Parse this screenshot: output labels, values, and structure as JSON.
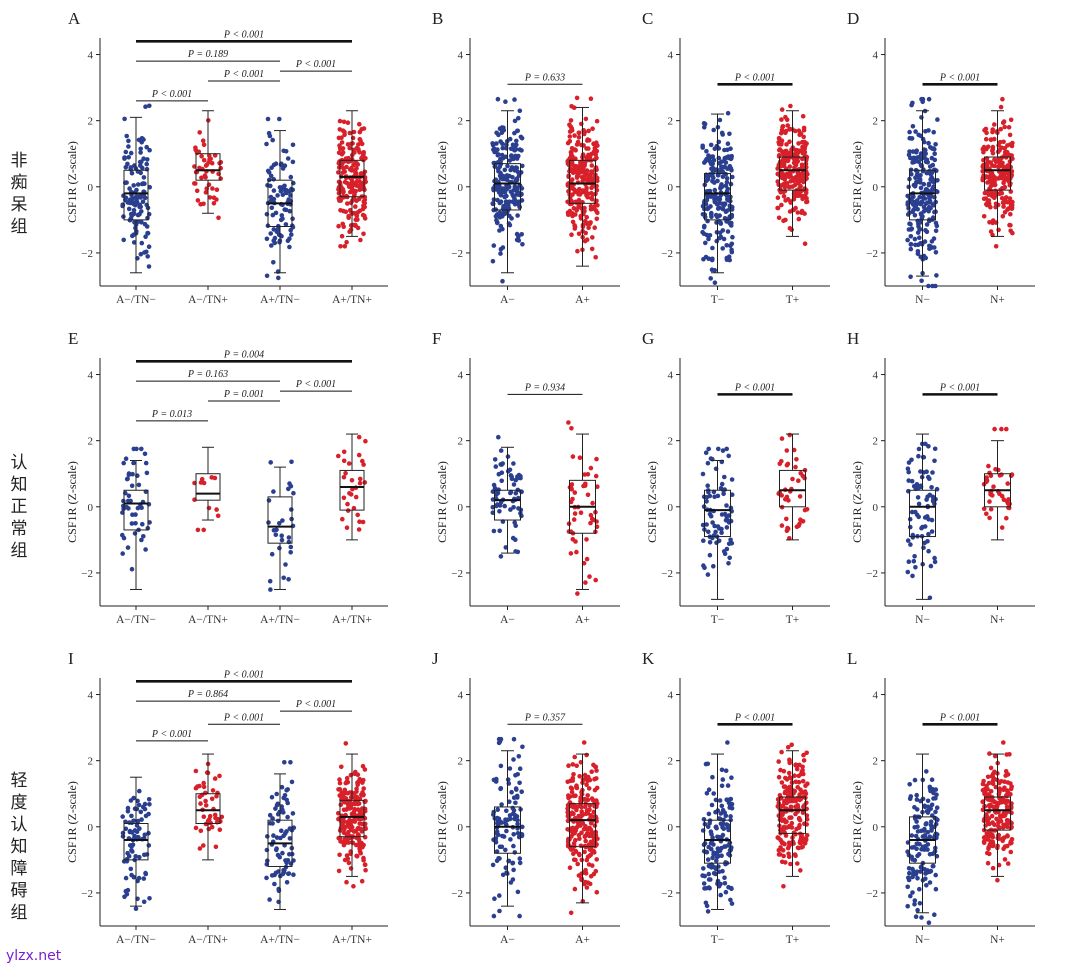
{
  "row_labels": [
    "非痴呆组",
    "认知正常组",
    "轻度认知障碍组"
  ],
  "watermark": "ylzx.net",
  "colors": {
    "negative": "#2a3f8f",
    "positive": "#d8202a"
  },
  "chart_data": [
    {
      "panel": "A",
      "type": "box",
      "ylabel": "CSF1R (Z-scale)",
      "ylim": [
        -3,
        4.5
      ],
      "yticks": [
        -2,
        0,
        2,
        4
      ],
      "ytick_labels": [
        "−2",
        "0",
        "2",
        "4"
      ],
      "categories": [
        "A−/TN−",
        "A−/TN+",
        "A+/TN−",
        "A+/TN+"
      ],
      "boxes": [
        {
          "min": -2.6,
          "q1": -1.0,
          "median": -0.2,
          "q3": 0.5,
          "max": 2.1,
          "n": 120,
          "color": "negative"
        },
        {
          "min": -0.8,
          "q1": 0.2,
          "median": 0.5,
          "q3": 1.0,
          "max": 2.3,
          "n": 50,
          "color": "positive"
        },
        {
          "min": -2.6,
          "q1": -1.2,
          "median": -0.5,
          "q3": 0.2,
          "max": 1.7,
          "n": 95,
          "color": "negative"
        },
        {
          "min": -1.5,
          "q1": -0.3,
          "median": 0.3,
          "q3": 0.8,
          "max": 2.3,
          "n": 200,
          "color": "positive"
        }
      ],
      "comparisons": [
        {
          "from": 0,
          "to": 1,
          "y": 2.6,
          "label": "P < 0.001",
          "bold": false
        },
        {
          "from": 1,
          "to": 2,
          "y": 3.2,
          "label": "P < 0.001",
          "bold": false
        },
        {
          "from": 2,
          "to": 3,
          "y": 3.5,
          "label": "P < 0.001",
          "bold": false
        },
        {
          "from": 0,
          "to": 2,
          "y": 3.8,
          "label": "P = 0.189",
          "bold": false
        },
        {
          "from": 0,
          "to": 3,
          "y": 4.4,
          "label": "P < 0.001",
          "bold": true
        }
      ]
    },
    {
      "panel": "B",
      "type": "box",
      "ylabel": "CSF1R (Z-scale)",
      "ylim": [
        -3,
        4.5
      ],
      "yticks": [
        -2,
        0,
        2,
        4
      ],
      "ytick_labels": [
        "−2",
        "0",
        "2",
        "4"
      ],
      "categories": [
        "A−",
        "A+"
      ],
      "boxes": [
        {
          "min": -2.6,
          "q1": -0.7,
          "median": 0.1,
          "q3": 0.7,
          "max": 2.3,
          "n": 200,
          "color": "negative"
        },
        {
          "min": -2.4,
          "q1": -0.5,
          "median": 0.1,
          "q3": 0.8,
          "max": 2.4,
          "n": 260,
          "color": "positive"
        }
      ],
      "comparisons": [
        {
          "from": 0,
          "to": 1,
          "y": 3.1,
          "label": "P = 0.633",
          "bold": false
        }
      ]
    },
    {
      "panel": "C",
      "type": "box",
      "ylabel": "CSF1R (Z-scale)",
      "ylim": [
        -3,
        4.5
      ],
      "yticks": [
        -2,
        0,
        2,
        4
      ],
      "ytick_labels": [
        "−2",
        "0",
        "2",
        "4"
      ],
      "categories": [
        "T−",
        "T+"
      ],
      "boxes": [
        {
          "min": -2.6,
          "q1": -1.0,
          "median": -0.2,
          "q3": 0.4,
          "max": 2.2,
          "n": 220,
          "color": "negative"
        },
        {
          "min": -1.5,
          "q1": -0.1,
          "median": 0.5,
          "q3": 0.9,
          "max": 2.3,
          "n": 240,
          "color": "positive"
        }
      ],
      "comparisons": [
        {
          "from": 0,
          "to": 1,
          "y": 3.1,
          "label": "P < 0.001",
          "bold": true
        }
      ]
    },
    {
      "panel": "D",
      "type": "box",
      "ylabel": "CSF1R (Z-scale)",
      "ylim": [
        -3,
        4.5
      ],
      "yticks": [
        -2,
        0,
        2,
        4
      ],
      "ytick_labels": [
        "−2",
        "0",
        "2",
        "4"
      ],
      "categories": [
        "N−",
        "N+"
      ],
      "boxes": [
        {
          "min": -2.7,
          "q1": -1.0,
          "median": -0.2,
          "q3": 0.5,
          "max": 2.3,
          "n": 230,
          "color": "negative"
        },
        {
          "min": -1.5,
          "q1": -0.1,
          "median": 0.5,
          "q3": 0.9,
          "max": 2.3,
          "n": 220,
          "color": "positive"
        }
      ],
      "comparisons": [
        {
          "from": 0,
          "to": 1,
          "y": 3.1,
          "label": "P < 0.001",
          "bold": true
        }
      ]
    },
    {
      "panel": "E",
      "type": "box",
      "ylabel": "CSF1R (Z-scale)",
      "ylim": [
        -3,
        4.5
      ],
      "yticks": [
        -2,
        0,
        2,
        4
      ],
      "ytick_labels": [
        "−2",
        "0",
        "2",
        "4"
      ],
      "categories": [
        "A−/TN−",
        "A−/TN+",
        "A+/TN−",
        "A+/TN+"
      ],
      "boxes": [
        {
          "min": -2.5,
          "q1": -0.7,
          "median": 0.1,
          "q3": 0.5,
          "max": 1.4,
          "n": 50,
          "color": "negative"
        },
        {
          "min": -0.4,
          "q1": 0.2,
          "median": 0.4,
          "q3": 1.0,
          "max": 1.8,
          "n": 12,
          "color": "positive"
        },
        {
          "min": -2.5,
          "q1": -1.1,
          "median": -0.6,
          "q3": 0.3,
          "max": 1.2,
          "n": 30,
          "color": "negative"
        },
        {
          "min": -1.0,
          "q1": -0.1,
          "median": 0.6,
          "q3": 1.1,
          "max": 2.2,
          "n": 30,
          "color": "positive"
        }
      ],
      "comparisons": [
        {
          "from": 0,
          "to": 1,
          "y": 2.6,
          "label": "P = 0.013",
          "bold": false
        },
        {
          "from": 1,
          "to": 2,
          "y": 3.2,
          "label": "P = 0.001",
          "bold": false
        },
        {
          "from": 2,
          "to": 3,
          "y": 3.5,
          "label": "P < 0.001",
          "bold": false
        },
        {
          "from": 0,
          "to": 2,
          "y": 3.8,
          "label": "P = 0.163",
          "bold": false
        },
        {
          "from": 0,
          "to": 3,
          "y": 4.4,
          "label": "P = 0.004",
          "bold": true
        }
      ]
    },
    {
      "panel": "F",
      "type": "box",
      "ylabel": "CSF1R (Z-scale)",
      "ylim": [
        -3,
        4.5
      ],
      "yticks": [
        -2,
        0,
        2,
        4
      ],
      "ytick_labels": [
        "−2",
        "0",
        "2",
        "4"
      ],
      "categories": [
        "A−",
        "A+"
      ],
      "boxes": [
        {
          "min": -1.4,
          "q1": -0.4,
          "median": 0.2,
          "q3": 0.5,
          "max": 1.8,
          "n": 70,
          "color": "negative"
        },
        {
          "min": -2.5,
          "q1": -0.8,
          "median": 0.0,
          "q3": 0.8,
          "max": 2.2,
          "n": 50,
          "color": "positive"
        }
      ],
      "comparisons": [
        {
          "from": 0,
          "to": 1,
          "y": 3.4,
          "label": "P = 0.934",
          "bold": false
        }
      ]
    },
    {
      "panel": "G",
      "type": "box",
      "ylabel": "CSF1R (Z-scale)",
      "ylim": [
        -3,
        4.5
      ],
      "yticks": [
        -2,
        0,
        2,
        4
      ],
      "ytick_labels": [
        "−2",
        "0",
        "2",
        "4"
      ],
      "categories": [
        "T−",
        "T+"
      ],
      "boxes": [
        {
          "min": -2.8,
          "q1": -0.9,
          "median": -0.1,
          "q3": 0.5,
          "max": 1.4,
          "n": 80,
          "color": "negative"
        },
        {
          "min": -1.0,
          "q1": 0.0,
          "median": 0.5,
          "q3": 1.1,
          "max": 2.2,
          "n": 40,
          "color": "positive"
        }
      ],
      "comparisons": [
        {
          "from": 0,
          "to": 1,
          "y": 3.4,
          "label": "P < 0.001",
          "bold": true
        }
      ]
    },
    {
      "panel": "H",
      "type": "box",
      "ylabel": "CSF1R (Z-scale)",
      "ylim": [
        -3,
        4.5
      ],
      "yticks": [
        -2,
        0,
        2,
        4
      ],
      "ytick_labels": [
        "−2",
        "0",
        "2",
        "4"
      ],
      "categories": [
        "N−",
        "N+"
      ],
      "boxes": [
        {
          "min": -2.8,
          "q1": -0.9,
          "median": 0.0,
          "q3": 0.5,
          "max": 2.2,
          "n": 80,
          "color": "negative"
        },
        {
          "min": -1.0,
          "q1": 0.0,
          "median": 0.5,
          "q3": 1.0,
          "max": 2.0,
          "n": 40,
          "color": "positive"
        }
      ],
      "comparisons": [
        {
          "from": 0,
          "to": 1,
          "y": 3.4,
          "label": "P < 0.001",
          "bold": true
        }
      ]
    },
    {
      "panel": "I",
      "type": "box",
      "ylabel": "CSF1R (Z-scale)",
      "ylim": [
        -3,
        4.5
      ],
      "yticks": [
        -2,
        0,
        2,
        4
      ],
      "ytick_labels": [
        "−2",
        "0",
        "2",
        "4"
      ],
      "categories": [
        "A−/TN−",
        "A−/TN+",
        "A+/TN−",
        "A+/TN+"
      ],
      "boxes": [
        {
          "min": -2.4,
          "q1": -1.0,
          "median": -0.4,
          "q3": 0.1,
          "max": 1.5,
          "n": 80,
          "color": "negative"
        },
        {
          "min": -1.0,
          "q1": 0.1,
          "median": 0.5,
          "q3": 1.0,
          "max": 2.2,
          "n": 45,
          "color": "positive"
        },
        {
          "min": -2.5,
          "q1": -1.2,
          "median": -0.5,
          "q3": 0.2,
          "max": 1.6,
          "n": 80,
          "color": "negative"
        },
        {
          "min": -1.5,
          "q1": -0.3,
          "median": 0.3,
          "q3": 0.8,
          "max": 2.2,
          "n": 200,
          "color": "positive"
        }
      ],
      "comparisons": [
        {
          "from": 0,
          "to": 1,
          "y": 2.6,
          "label": "P < 0.001",
          "bold": false
        },
        {
          "from": 1,
          "to": 2,
          "y": 3.1,
          "label": "P < 0.001",
          "bold": false
        },
        {
          "from": 2,
          "to": 3,
          "y": 3.5,
          "label": "P < 0.001",
          "bold": false
        },
        {
          "from": 0,
          "to": 2,
          "y": 3.8,
          "label": "P = 0.864",
          "bold": false
        },
        {
          "from": 0,
          "to": 3,
          "y": 4.4,
          "label": "P < 0.001",
          "bold": true
        }
      ]
    },
    {
      "panel": "J",
      "type": "box",
      "ylabel": "CSF1R (Z-scale)",
      "ylim": [
        -3,
        4.5
      ],
      "yticks": [
        -2,
        0,
        2,
        4
      ],
      "ytick_labels": [
        "−2",
        "0",
        "2",
        "4"
      ],
      "categories": [
        "A−",
        "A+"
      ],
      "boxes": [
        {
          "min": -2.4,
          "q1": -0.8,
          "median": 0.0,
          "q3": 0.6,
          "max": 2.3,
          "n": 110,
          "color": "negative"
        },
        {
          "min": -2.3,
          "q1": -0.6,
          "median": 0.2,
          "q3": 0.7,
          "max": 2.2,
          "n": 230,
          "color": "positive"
        }
      ],
      "comparisons": [
        {
          "from": 0,
          "to": 1,
          "y": 3.1,
          "label": "P = 0.357",
          "bold": false
        }
      ]
    },
    {
      "panel": "K",
      "type": "box",
      "ylabel": "CSF1R (Z-scale)",
      "ylim": [
        -3,
        4.5
      ],
      "yticks": [
        -2,
        0,
        2,
        4
      ],
      "ytick_labels": [
        "−2",
        "0",
        "2",
        "4"
      ],
      "categories": [
        "T−",
        "T+"
      ],
      "boxes": [
        {
          "min": -2.5,
          "q1": -1.1,
          "median": -0.4,
          "q3": 0.2,
          "max": 2.2,
          "n": 140,
          "color": "negative"
        },
        {
          "min": -1.5,
          "q1": -0.2,
          "median": 0.5,
          "q3": 0.9,
          "max": 2.3,
          "n": 200,
          "color": "positive"
        }
      ],
      "comparisons": [
        {
          "from": 0,
          "to": 1,
          "y": 3.1,
          "label": "P < 0.001",
          "bold": true
        }
      ]
    },
    {
      "panel": "L",
      "type": "box",
      "ylabel": "CSF1R (Z-scale)",
      "ylim": [
        -3,
        4.5
      ],
      "yticks": [
        -2,
        0,
        2,
        4
      ],
      "ytick_labels": [
        "−2",
        "0",
        "2",
        "4"
      ],
      "categories": [
        "N−",
        "N+"
      ],
      "boxes": [
        {
          "min": -2.6,
          "q1": -1.1,
          "median": -0.4,
          "q3": 0.3,
          "max": 2.2,
          "n": 140,
          "color": "negative"
        },
        {
          "min": -1.5,
          "q1": -0.1,
          "median": 0.5,
          "q3": 0.9,
          "max": 2.2,
          "n": 200,
          "color": "positive"
        }
      ],
      "comparisons": [
        {
          "from": 0,
          "to": 1,
          "y": 3.1,
          "label": "P < 0.001",
          "bold": true
        }
      ]
    }
  ]
}
